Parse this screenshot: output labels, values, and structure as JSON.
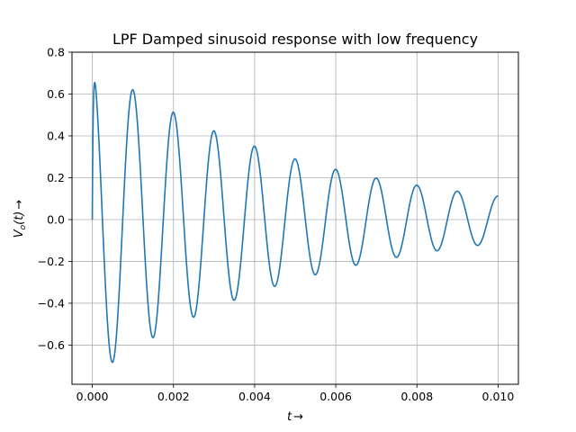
{
  "chart_data": {
    "type": "line",
    "title": "LPF Damped sinusoid response with low frequency",
    "xlabel_var": "t",
    "xlabel_arrow": "→",
    "ylabel_var": "V",
    "ylabel_sub": "o",
    "ylabel_arg": "(t)",
    "ylabel_arrow": "→",
    "xlim": [
      -0.0005,
      0.0105
    ],
    "ylim": [
      -0.7874,
      0.8
    ],
    "xticks": [
      0.0,
      0.002,
      0.004,
      0.006,
      0.008,
      0.01
    ],
    "xtick_labels": [
      "0.000",
      "0.002",
      "0.004",
      "0.006",
      "0.008",
      "0.010"
    ],
    "yticks": [
      -0.6,
      -0.4,
      -0.2,
      0.0,
      0.2,
      0.4,
      0.6,
      0.8
    ],
    "ytick_labels": [
      "−0.6",
      "−0.4",
      "−0.2",
      "0.0",
      "0.2",
      "0.4",
      "0.6",
      "0.8"
    ],
    "grid": true,
    "line_color": "#1f77b4",
    "series": [
      {
        "model": "damped_sinusoid_lpf",
        "amplitude": 0.75,
        "decay_rate": 190,
        "frequency_hz": 1000,
        "rise_time_constant": 2e-05,
        "t_start": 0.0,
        "t_end": 0.01
      }
    ]
  }
}
